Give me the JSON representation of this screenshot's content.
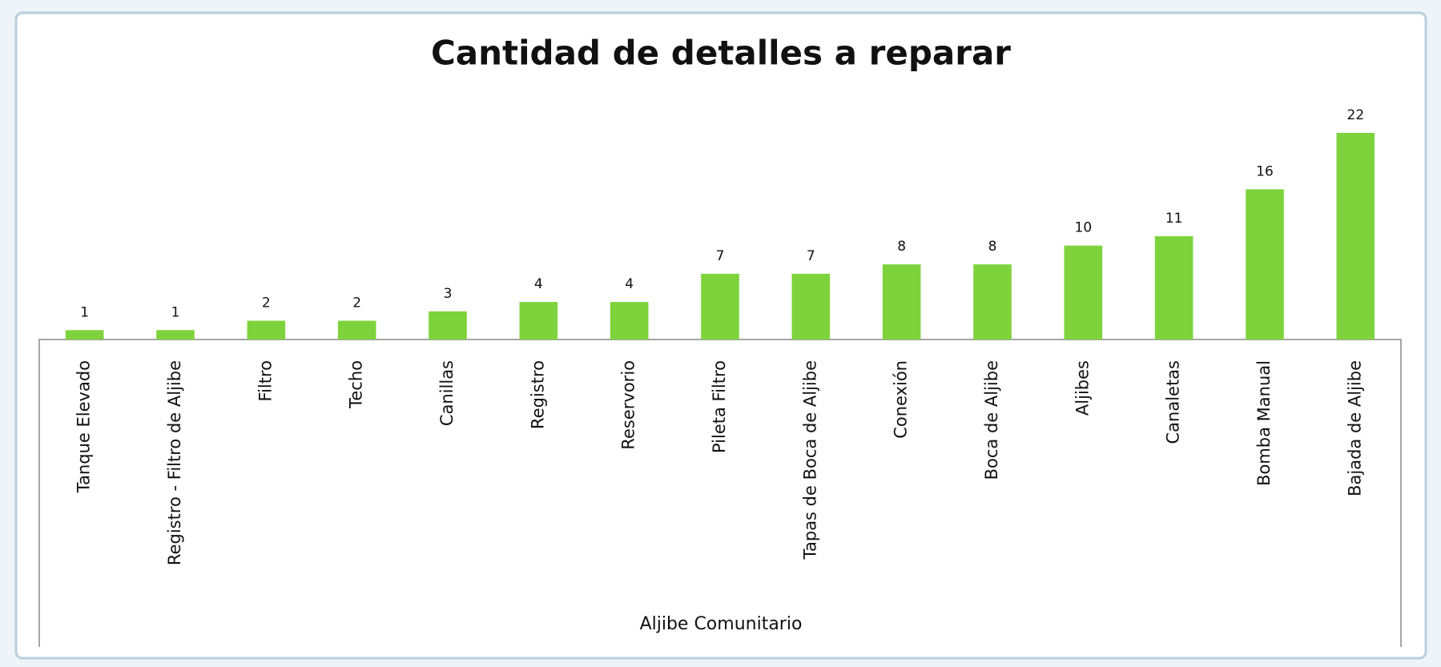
{
  "chart_data": {
    "type": "bar",
    "title": "Cantidad de detalles a reparar",
    "x_label": "Aljibe Comunitario",
    "categories": [
      "Tanque Elevado",
      "Registro - Filtro de Aljibe",
      "Filtro",
      "Techo",
      "Canillas",
      "Registro",
      "Reservorio",
      "Pileta Filtro",
      "Tapas de Boca de Aljibe",
      "Conexión",
      "Boca de Aljibe",
      "Aljibes",
      "Canaletas",
      "Bomba Manual",
      "Bajada de Aljibe"
    ],
    "values": [
      1,
      1,
      2,
      2,
      3,
      4,
      4,
      7,
      7,
      8,
      8,
      10,
      11,
      16,
      22
    ],
    "color": "#7ed33c"
  }
}
